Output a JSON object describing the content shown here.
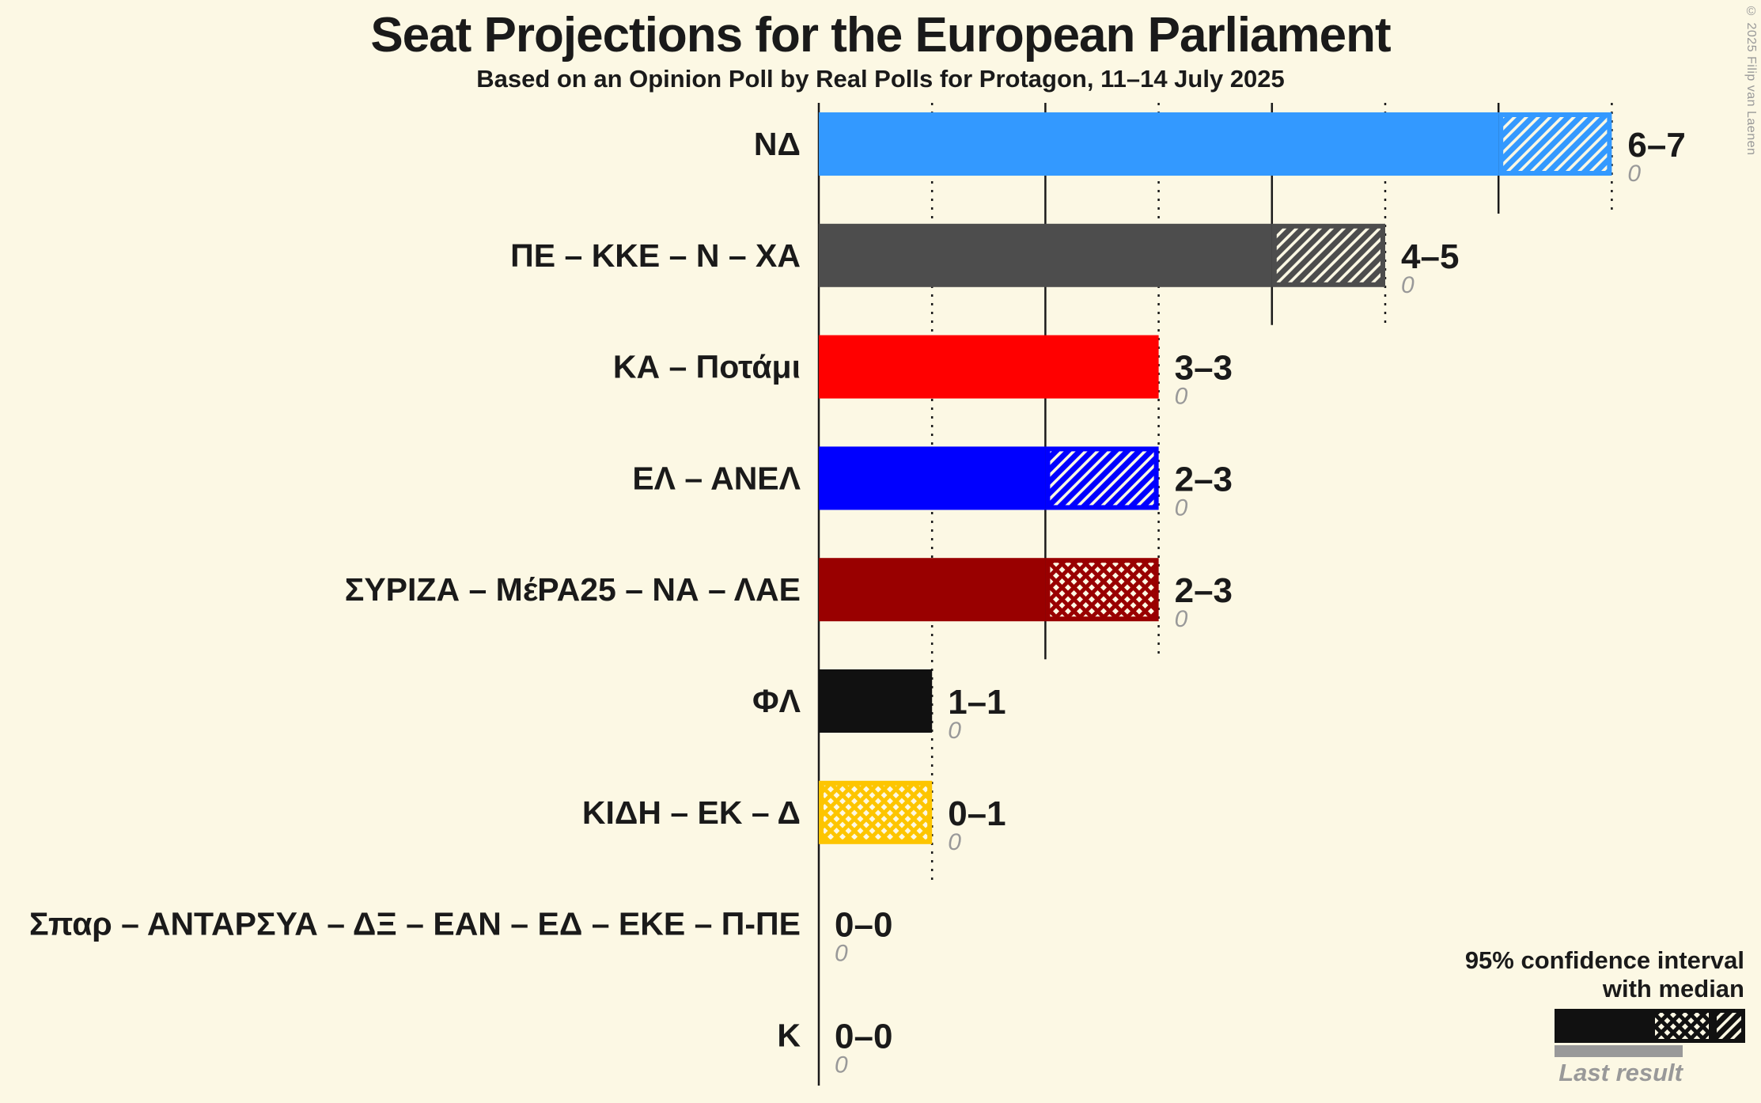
{
  "colors": {
    "background": "#FCF8E4",
    "text": "#1A1A1A",
    "muted_gray": "#999999"
  },
  "copyright": "© 2025 Filip van Laenen",
  "legend": {
    "ci_line1": "95% confidence interval",
    "ci_line2": "with median",
    "last_result_label": "Last result",
    "sample_color": "#111111",
    "last_result_color": "#999999"
  },
  "chart_data": {
    "type": "bar",
    "orientation": "horizontal",
    "title": "Seat Projections for the European Parliament",
    "subtitle": "Based on an Opinion Poll by Real Polls for Protagon, 11–14 July 2025",
    "x_axis": {
      "min": 0,
      "max": 7,
      "tick_step": 1,
      "solid_gridlines": [
        0,
        2,
        4,
        6
      ],
      "dotted_gridlines": [
        1,
        3,
        5,
        7
      ]
    },
    "bars": [
      {
        "party": "ΝΔ",
        "color": "#3399FF",
        "ci_low": 6,
        "median": 6,
        "ci_high": 7,
        "last_result": 0,
        "label": "6–7",
        "last_result_label": "0"
      },
      {
        "party": "ΠΕ – ΚΚΕ – Ν – ΧΑ",
        "color": "#4D4D4D",
        "ci_low": 4,
        "median": 4,
        "ci_high": 5,
        "last_result": 0,
        "label": "4–5",
        "last_result_label": "0"
      },
      {
        "party": "ΚΑ – Ποτάμι",
        "color": "#FF0000",
        "ci_low": 3,
        "median": 3,
        "ci_high": 3,
        "last_result": 0,
        "label": "3–3",
        "last_result_label": "0"
      },
      {
        "party": "ΕΛ – ΑΝΕΛ",
        "color": "#0000FF",
        "ci_low": 2,
        "median": 2,
        "ci_high": 3,
        "last_result": 0,
        "label": "2–3",
        "last_result_label": "0"
      },
      {
        "party": "ΣΥΡΙΖΑ – ΜέΡΑ25 – ΝΑ – ΛΑΕ",
        "color": "#990000",
        "ci_low": 2,
        "median": 3,
        "ci_high": 3,
        "last_result": 0,
        "label": "2–3",
        "last_result_label": "0"
      },
      {
        "party": "ΦΛ",
        "color": "#111111",
        "ci_low": 1,
        "median": 1,
        "ci_high": 1,
        "last_result": 0,
        "label": "1–1",
        "last_result_label": "0"
      },
      {
        "party": "ΚΙΔΗ – ΕΚ – Δ",
        "color": "#FDC500",
        "ci_low": 0,
        "median": 1,
        "ci_high": 1,
        "last_result": 0,
        "label": "0–1",
        "last_result_label": "0"
      },
      {
        "party": "Σπαρ – ΑΝΤΑΡΣΥΑ – ΔΞ – ΕΑΝ – ΕΔ – ΕΚΕ – Π-ΠΕ",
        "color": "#777777",
        "ci_low": 0,
        "median": 0,
        "ci_high": 0,
        "last_result": 0,
        "label": "0–0",
        "last_result_label": "0"
      },
      {
        "party": "Κ",
        "color": "#777777",
        "ci_low": 0,
        "median": 0,
        "ci_high": 0,
        "last_result": 0,
        "label": "0–0",
        "last_result_label": "0"
      }
    ]
  }
}
